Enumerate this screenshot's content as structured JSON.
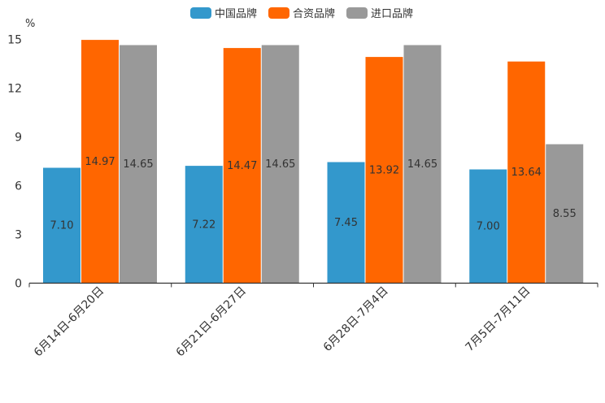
{
  "chart_data": {
    "type": "bar",
    "title": "",
    "ylabel": "%",
    "xlabel": "",
    "ylim": [
      0,
      15
    ],
    "yticks": [
      0,
      3,
      6,
      9,
      12,
      15
    ],
    "categories": [
      "6月14日-6月20日",
      "6月21日-6月27日",
      "6月28日-7月4日",
      "7月5日-7月11日"
    ],
    "series": [
      {
        "name": "中国品牌",
        "color": "#3398CC",
        "values": [
          7.1,
          7.22,
          7.45,
          7.0
        ],
        "labels": [
          "7.10",
          "7.22",
          "7.45",
          "7.00"
        ]
      },
      {
        "name": "合资品牌",
        "color": "#FF6600",
        "values": [
          14.97,
          14.47,
          13.92,
          13.64
        ],
        "labels": [
          "14.97",
          "14.47",
          "13.92",
          "13.64"
        ]
      },
      {
        "name": "进口品牌",
        "color": "#999999",
        "values": [
          14.65,
          14.65,
          14.65,
          8.55
        ],
        "labels": [
          "14.65",
          "14.65",
          "14.65",
          "8.55"
        ]
      }
    ],
    "legend_position": "top-center"
  }
}
